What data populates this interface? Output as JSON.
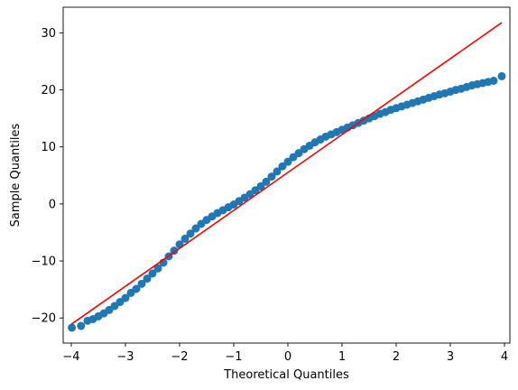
{
  "chart_data": {
    "type": "scatter",
    "title": "",
    "xlabel": "Theoretical Quantiles",
    "ylabel": "Sample Quantiles",
    "xlim": [
      -4.15,
      4.1
    ],
    "ylim": [
      -24.4,
      34.5
    ],
    "x_ticks": [
      -4,
      -3,
      -2,
      -1,
      0,
      1,
      2,
      3,
      4
    ],
    "y_ticks": [
      -20,
      -10,
      0,
      10,
      20,
      30
    ],
    "grid": false,
    "legend": "none",
    "colors": {
      "points": "#1f77b4",
      "reference_line": "#ff0000"
    },
    "series": [
      {
        "kind": "points",
        "x": [
          -3.99,
          -3.82,
          -3.7,
          -3.6,
          -3.5,
          -3.4,
          -3.3,
          -3.2,
          -3.1,
          -3.0,
          -2.9,
          -2.8,
          -2.7,
          -2.6,
          -2.5,
          -2.4,
          -2.3,
          -2.2,
          -2.1,
          -2.0,
          -1.9,
          -1.8,
          -1.7,
          -1.6,
          -1.5,
          -1.4,
          -1.3,
          -1.2,
          -1.1,
          -1.0,
          -0.9,
          -0.8,
          -0.7,
          -0.6,
          -0.5,
          -0.4,
          -0.3,
          -0.2,
          -0.1,
          0.0,
          0.1,
          0.2,
          0.3,
          0.4,
          0.5,
          0.6,
          0.7,
          0.8,
          0.9,
          1.0,
          1.1,
          1.2,
          1.3,
          1.4,
          1.5,
          1.6,
          1.7,
          1.8,
          1.9,
          2.0,
          2.1,
          2.2,
          2.3,
          2.4,
          2.5,
          2.6,
          2.7,
          2.8,
          2.9,
          3.0,
          3.1,
          3.2,
          3.3,
          3.4,
          3.5,
          3.6,
          3.7,
          3.8,
          3.95
        ],
        "y": [
          -21.7,
          -21.4,
          -20.5,
          -20.2,
          -19.7,
          -19.2,
          -18.6,
          -17.9,
          -17.2,
          -16.5,
          -15.6,
          -14.9,
          -14.0,
          -13.1,
          -12.2,
          -11.3,
          -10.3,
          -9.2,
          -8.2,
          -7.1,
          -6.1,
          -5.2,
          -4.3,
          -3.5,
          -2.8,
          -2.2,
          -1.6,
          -1.1,
          -0.6,
          -0.1,
          0.5,
          1.1,
          1.7,
          2.4,
          3.1,
          3.9,
          4.8,
          5.7,
          6.6,
          7.4,
          8.2,
          8.9,
          9.6,
          10.2,
          10.8,
          11.3,
          11.8,
          12.2,
          12.6,
          13.0,
          13.4,
          13.8,
          14.2,
          14.6,
          15.0,
          15.4,
          15.8,
          16.1,
          16.5,
          16.8,
          17.1,
          17.4,
          17.7,
          18.0,
          18.3,
          18.6,
          18.9,
          19.2,
          19.4,
          19.7,
          20.0,
          20.2,
          20.5,
          20.8,
          21.0,
          21.2,
          21.4,
          21.6,
          22.4
        ]
      },
      {
        "kind": "line",
        "x": [
          -4.0,
          3.95
        ],
        "y": [
          -21.1,
          31.8
        ]
      }
    ]
  }
}
